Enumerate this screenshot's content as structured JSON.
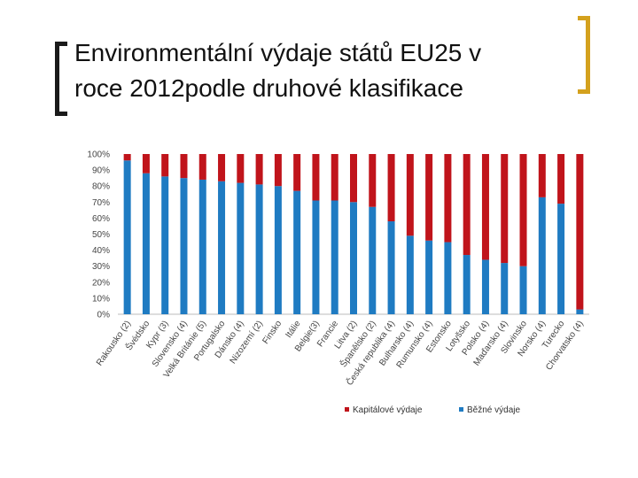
{
  "title_lines": [
    "Environmentální výdaje států EU25 v",
    "roce 2012podle druhové klasifikace"
  ],
  "colors": {
    "capital": "#c0141b",
    "current": "#1f7bc2",
    "bracket_left": "#1a1a1a",
    "bracket_right": "#d4a11d"
  },
  "chart_data": {
    "type": "bar",
    "stacked": true,
    "percent": true,
    "title": "",
    "xlabel": "",
    "ylabel": "",
    "ylim": [
      0,
      100
    ],
    "yticks": [
      "0%",
      "10%",
      "20%",
      "30%",
      "40%",
      "50%",
      "60%",
      "70%",
      "80%",
      "90%",
      "100%"
    ],
    "legend_position": "bottom",
    "categories": [
      "Rakousko (2)",
      "Švédsko",
      "Kypr (3)",
      "Slovensko (4)",
      "Velká Británie (5)",
      "Portugalsko",
      "Dánsko (4)",
      "Nizozemí (2)",
      "Finsko",
      "Itálie",
      "Belgie(3)",
      "Francie",
      "Litva (2)",
      "Španělsko (2)",
      "Česká republika (4)",
      "Bulharsko (4)",
      "Rumunsko (4)",
      "Estonsko",
      "Lotyšsko",
      "Polsko (4)",
      "Maďarsko (4)",
      "Slovinsko",
      "Norsko (4)",
      "Turecko",
      "Chorvatsko (4)"
    ],
    "series": [
      {
        "name": "Běžné výdaje",
        "color": "#1f7bc2",
        "values": [
          96,
          88,
          86,
          85,
          84,
          83,
          82,
          81,
          80,
          77,
          71,
          71,
          70,
          67,
          58,
          49,
          46,
          45,
          37,
          34,
          32,
          30,
          73,
          69,
          3
        ]
      },
      {
        "name": "Kapitálové výdaje",
        "color": "#c0141b",
        "values": [
          4,
          12,
          14,
          15,
          16,
          17,
          18,
          19,
          20,
          23,
          29,
          29,
          30,
          33,
          42,
          51,
          54,
          55,
          63,
          66,
          68,
          70,
          27,
          31,
          97
        ]
      }
    ],
    "legend": [
      "Kapitálové výdaje",
      "Běžné výdaje"
    ]
  }
}
